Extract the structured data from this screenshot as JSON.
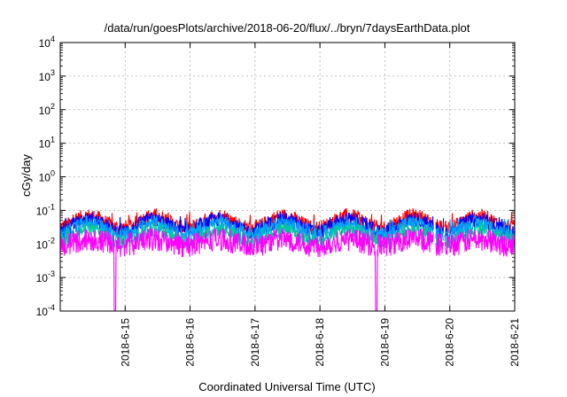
{
  "chart_data": {
    "type": "line",
    "title": "/data/run/goesPlots/archive/2018-06-20/flux/../bryn/7daysEarthData.plot",
    "xlabel": "Coordinated Universal Time (UTC)",
    "ylabel": "cGy/day",
    "yscale": "log",
    "ylim": [
      0.0001,
      10000
    ],
    "yticks": [
      {
        "base": "10",
        "exp": "-4"
      },
      {
        "base": "10",
        "exp": "-3"
      },
      {
        "base": "10",
        "exp": "-2"
      },
      {
        "base": "10",
        "exp": "-1"
      },
      {
        "base": "10",
        "exp": "0"
      },
      {
        "base": "10",
        "exp": "1"
      },
      {
        "base": "10",
        "exp": "2"
      },
      {
        "base": "10",
        "exp": "3"
      },
      {
        "base": "10",
        "exp": "4"
      }
    ],
    "xlim": [
      "2018-06-14T00:00",
      "2018-06-21T00:00"
    ],
    "xticks": [
      "2018-6-15",
      "2018-6-16",
      "2018-6-17",
      "2018-6-18",
      "2018-6-19",
      "2018-6-20",
      "2018-6-21"
    ],
    "grid": true,
    "data_gaps": [
      [
        "2018-06-19T18:00",
        "2018-06-19T18:50"
      ],
      [
        "2018-06-19T21:40",
        "2018-06-19T22:05"
      ]
    ],
    "dropouts": [
      {
        "time": "2018-06-14T20:10",
        "series": "magenta",
        "value": 0.0001
      },
      {
        "time": "2018-06-18T20:50",
        "series": "magenta",
        "value": 0.0001
      }
    ],
    "series": [
      {
        "color": "#ff0000",
        "typical": 0.045,
        "peak": 0.08
      },
      {
        "color": "#0000ff",
        "typical": 0.035,
        "peak": 0.06
      },
      {
        "color": "#00a0ff",
        "typical": 0.028,
        "peak": 0.05
      },
      {
        "color": "#00c8a0",
        "typical": 0.018,
        "peak": 0.03
      },
      {
        "color": "#ff00ff",
        "typical": 0.008,
        "peak": 0.02
      }
    ]
  }
}
